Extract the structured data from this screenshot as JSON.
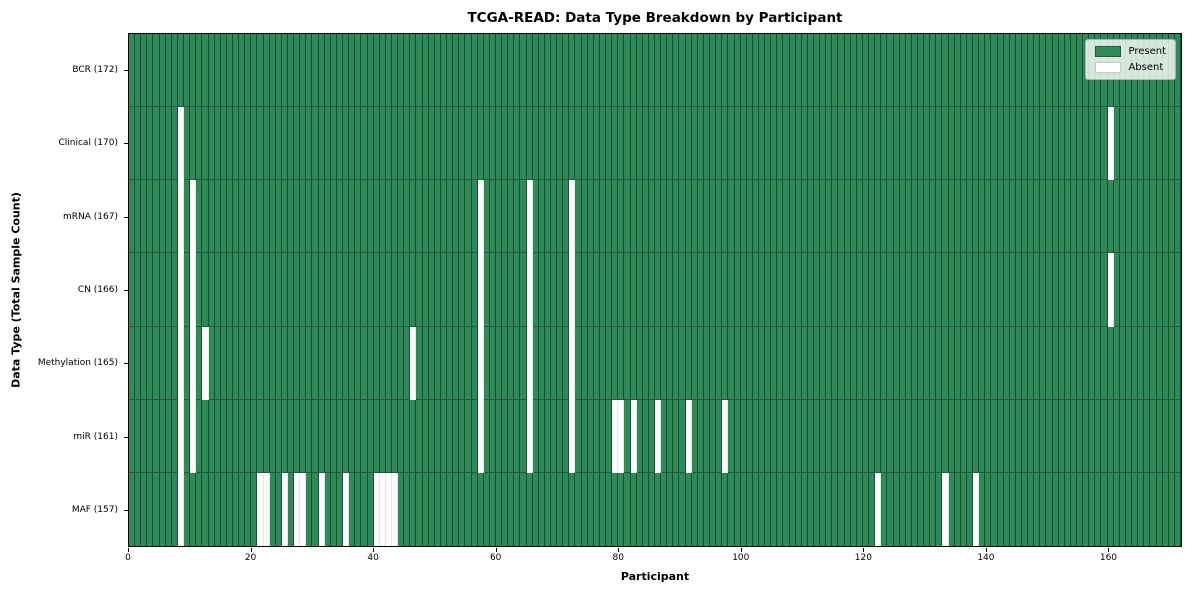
{
  "chart_data": {
    "type": "heatmap",
    "title": "TCGA-READ: Data Type Breakdown by Participant",
    "xlabel": "Participant",
    "ylabel": "Data Type (Total Sample Count)",
    "n_participants": 172,
    "x_ticks": [
      0,
      20,
      40,
      60,
      80,
      100,
      120,
      140,
      160
    ],
    "grid": true,
    "legend_position": "upper right",
    "legend": [
      {
        "label": "Present",
        "color": "#2e8b57"
      },
      {
        "label": "Absent",
        "color": "#ffffff"
      }
    ],
    "colors": {
      "present": "#2e8b57",
      "absent": "#ffffff",
      "cell_edge": "#14301f",
      "spine": "#000000"
    },
    "rows": [
      {
        "label": "BCR (172)",
        "count": 172,
        "absent": []
      },
      {
        "label": "Clinical (170)",
        "count": 170,
        "absent": [
          8,
          160
        ]
      },
      {
        "label": "mRNA (167)",
        "count": 167,
        "absent": [
          8,
          10,
          57,
          65,
          72
        ]
      },
      {
        "label": "CN (166)",
        "count": 166,
        "absent": [
          8,
          10,
          57,
          65,
          72,
          160
        ]
      },
      {
        "label": "Methylation (165)",
        "count": 165,
        "absent": [
          8,
          10,
          12,
          46,
          57,
          65,
          72
        ]
      },
      {
        "label": "miR (161)",
        "count": 161,
        "absent": [
          8,
          10,
          57,
          65,
          72,
          79,
          80,
          82,
          86,
          91,
          97
        ]
      },
      {
        "label": "MAF (157)",
        "count": 157,
        "absent": [
          8,
          21,
          22,
          25,
          27,
          28,
          31,
          35,
          40,
          41,
          42,
          43,
          122,
          133,
          138
        ]
      }
    ]
  }
}
